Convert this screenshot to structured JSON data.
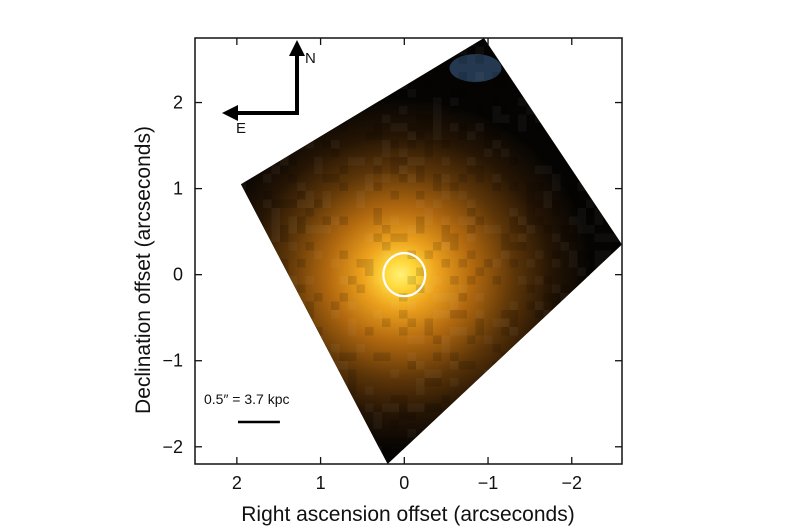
{
  "chart_data": {
    "type": "heatmap",
    "title": "",
    "xlabel": "Right ascension offset (arcseconds)",
    "ylabel": "Declination offset (arcseconds)",
    "xlim": [
      2.5,
      -2.6
    ],
    "ylim": [
      -2.2,
      2.75
    ],
    "x_ticks": [
      2,
      1,
      0,
      -1,
      -2
    ],
    "x_tick_labels": [
      "2",
      "1",
      "0",
      "−1",
      "−2"
    ],
    "y_ticks": [
      2,
      1,
      0,
      -1,
      -2
    ],
    "y_tick_labels": [
      "2",
      "1",
      "0",
      "−1",
      "−2"
    ],
    "grid": false,
    "image": {
      "description_colors": {
        "core": "#ffe24a",
        "inner": "#f0a21c",
        "halo": "#a8610f",
        "outer": "#3d2306",
        "background": "#050403",
        "blue_patch": "#2f4a66",
        "green_patch": "#3d6a2c"
      },
      "footprint_corners": [
        [
          1.95,
          1.05
        ],
        [
          -0.95,
          2.75
        ],
        [
          -2.6,
          0.35
        ],
        [
          0.2,
          -2.2
        ]
      ],
      "center": [
        0.05,
        0.0
      ]
    },
    "annotations": {
      "ellipse_center": [
        0.0,
        0.0
      ],
      "ellipse_radii": [
        0.25,
        0.25
      ],
      "ellipse_color": "#ffffff",
      "compass": {
        "north_label": "N",
        "east_label": "E"
      },
      "scale_bar": {
        "label": "0.5″ = 3.7 kpc",
        "length_arcsec": 0.5
      }
    }
  }
}
